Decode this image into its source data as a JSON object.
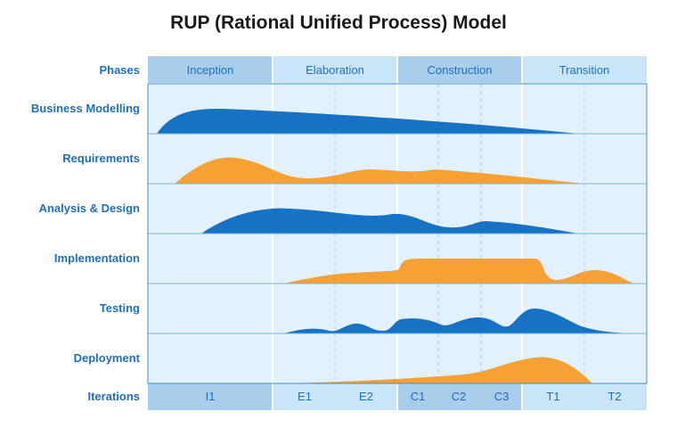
{
  "title": "RUP (Rational Unified Process) Model",
  "colors": {
    "blue": "#1771c4",
    "orange": "#f7a033",
    "phase_dark": "#a9cdea",
    "phase_light": "#cbe5f8",
    "row_bg": "#e3f1fc",
    "label_text": "#1d6fbf"
  },
  "phases": {
    "label": "Phases",
    "items": [
      "Inception",
      "Elaboration",
      "Construction",
      "Transition"
    ]
  },
  "disciplines": [
    {
      "label": "Business Modelling",
      "color": "blue"
    },
    {
      "label": "Requirements",
      "color": "orange"
    },
    {
      "label": "Analysis & Design",
      "color": "blue"
    },
    {
      "label": "Implementation",
      "color": "orange"
    },
    {
      "label": "Testing",
      "color": "blue"
    },
    {
      "label": "Deployment",
      "color": "orange"
    }
  ],
  "iterations": {
    "label": "Iterations",
    "items": [
      "I1",
      "E1",
      "E2",
      "C1",
      "C2",
      "C3",
      "T1",
      "T2"
    ]
  }
}
